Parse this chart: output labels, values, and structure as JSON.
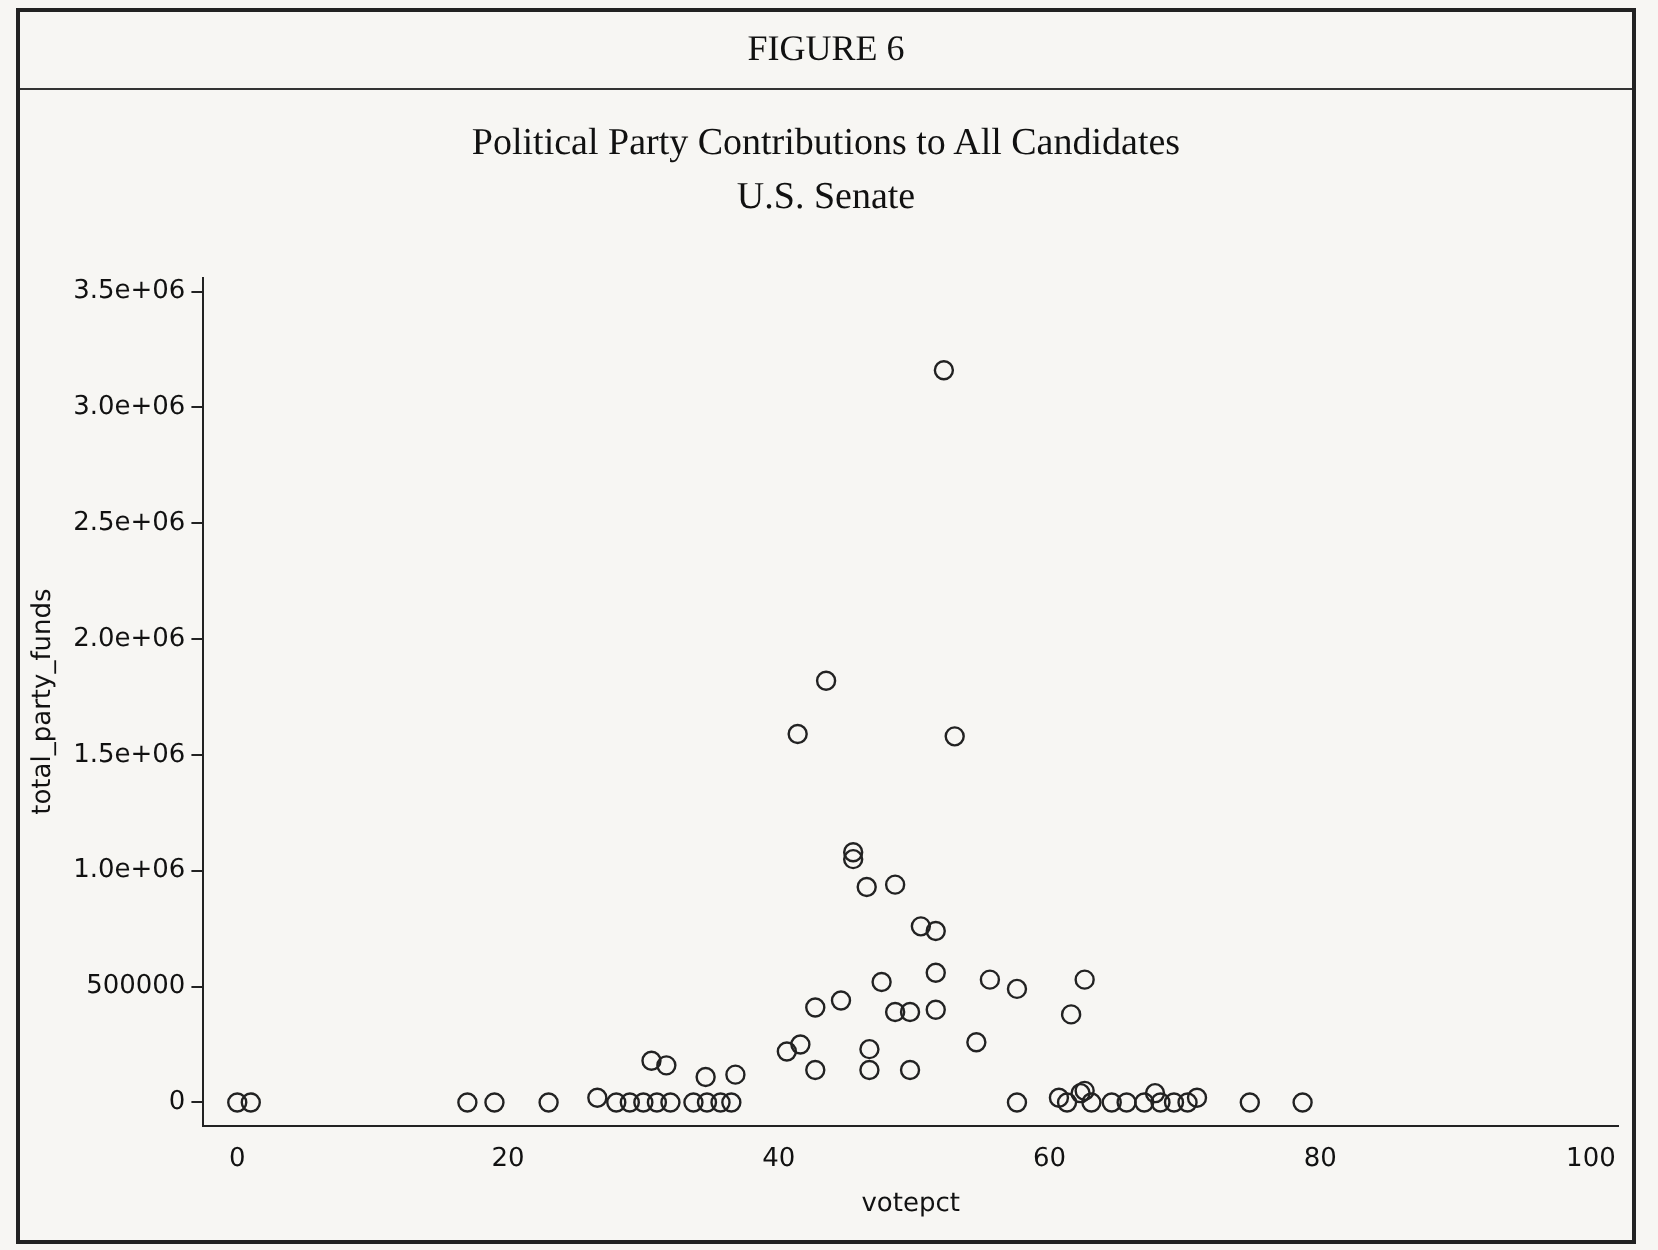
{
  "chart_data": {
    "type": "scatter",
    "title": "Political Party Contributions to All Candidates",
    "subtitle": "U.S. Senate",
    "annotations": [
      "FIGURE 6"
    ],
    "xlabel": "votepct",
    "ylabel": "total_party_funds",
    "x": [
      0,
      1,
      17,
      19,
      23,
      26.6,
      28,
      29,
      30,
      31,
      32,
      30.6,
      31.7,
      33.7,
      34.7,
      35.7,
      36.5,
      34.6,
      36.8,
      40.6,
      41.6,
      42.7,
      42.7,
      41.4,
      43.5,
      44.6,
      45.5,
      45.5,
      46.5,
      48.6,
      47.6,
      46.7,
      46.7,
      48.6,
      49.7,
      49.7,
      50.5,
      51.6,
      51.6,
      51.6,
      52.2,
      53.0,
      55.6,
      54.6,
      57.6,
      57.6,
      61.6,
      62.6,
      60.7,
      61.3,
      62.3,
      62.6,
      63.1,
      64.6,
      65.7,
      67,
      68.2,
      69.2,
      70.2,
      67.8,
      70.9,
      74.8,
      78.7
    ],
    "values": [
      0,
      0,
      0,
      0,
      0,
      20000,
      0,
      0,
      0,
      0,
      0,
      180000,
      160000,
      0,
      0,
      0,
      0,
      110000,
      120000,
      220000,
      250000,
      140000,
      410000,
      1590000,
      1820000,
      440000,
      1080000,
      1050000,
      930000,
      940000,
      520000,
      230000,
      140000,
      390000,
      390000,
      140000,
      760000,
      740000,
      560000,
      400000,
      3160000,
      1580000,
      530000,
      260000,
      490000,
      0,
      380000,
      530000,
      20000,
      0,
      40000,
      50000,
      0,
      0,
      0,
      0,
      0,
      0,
      0,
      40000,
      20000,
      0,
      0
    ],
    "color": "#222222",
    "marker": "circle",
    "grid": false,
    "legend": false,
    "xlim": [
      -2.5,
      102
    ],
    "xticks": [
      0,
      20,
      40,
      60,
      80,
      100
    ],
    "ylim": [
      -100000,
      3560000
    ],
    "yticks": [
      {
        "value": 0,
        "label": "0"
      },
      {
        "value": 500000,
        "label": "500000"
      },
      {
        "value": 1000000,
        "label": "1.0e+06"
      },
      {
        "value": 1500000,
        "label": "1.5e+06"
      },
      {
        "value": 2000000,
        "label": "2.0e+06"
      },
      {
        "value": 2500000,
        "label": "2.5e+06"
      },
      {
        "value": 3000000,
        "label": "3.0e+06"
      },
      {
        "value": 3500000,
        "label": "3.5e+06"
      }
    ]
  }
}
